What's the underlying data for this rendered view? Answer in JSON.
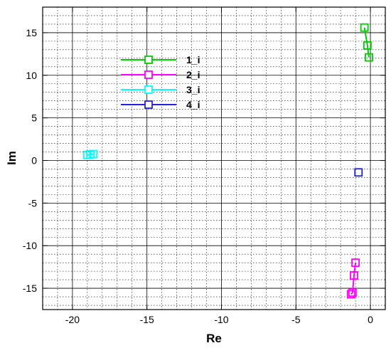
{
  "chart_data": {
    "type": "line",
    "xlabel": "Re",
    "ylabel": "Im",
    "xlim": [
      -22,
      1
    ],
    "ylim": [
      -17.5,
      18
    ],
    "xticks": [
      -20,
      -15,
      -10,
      -5,
      0
    ],
    "yticks": [
      -15,
      -10,
      -5,
      0,
      5,
      10,
      15
    ],
    "x_minor_step": 1,
    "y_minor_step": 1,
    "grid": true,
    "legend_position": "upper-left",
    "series": [
      {
        "name": "1_i",
        "color": "#00cc00",
        "points": [
          [
            -0.4,
            15.6
          ],
          [
            -0.2,
            13.5
          ],
          [
            -0.1,
            12.1
          ]
        ]
      },
      {
        "name": "2_i",
        "color": "#ff00ff",
        "points": [
          [
            -1.0,
            -12.0
          ],
          [
            -1.1,
            -13.5
          ],
          [
            -1.2,
            -15.5
          ],
          [
            -1.3,
            -15.7
          ]
        ]
      },
      {
        "name": "3_i",
        "color": "#00ffff",
        "points": [
          [
            -18.6,
            0.75
          ],
          [
            -18.8,
            0.7
          ],
          [
            -19.0,
            0.65
          ]
        ]
      },
      {
        "name": "4_i",
        "color": "#2222dd",
        "points": [
          [
            -0.8,
            -1.4
          ]
        ]
      }
    ]
  }
}
